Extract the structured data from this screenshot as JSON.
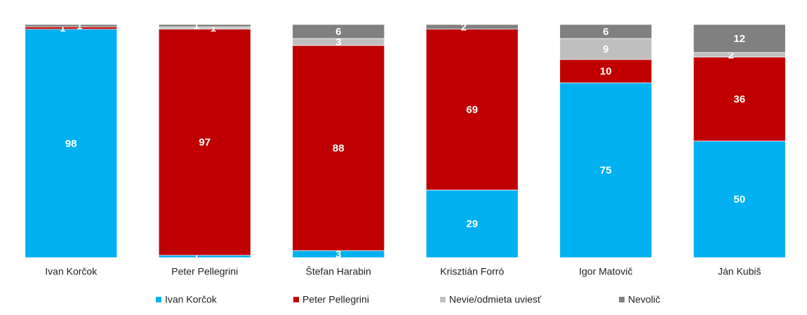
{
  "chart_data": {
    "type": "stacked-bar",
    "categories": [
      "Ivan Korčok",
      "Peter Pellegrini",
      "Štefan Harabin",
      "Krisztián Forró",
      "Igor Matovič",
      "Ján Kubiš"
    ],
    "series": [
      {
        "name": "Ivan Korčok",
        "color": "#00b0f0",
        "values": [
          98,
          1,
          3,
          29,
          75,
          50
        ]
      },
      {
        "name": "Peter Pellegrini",
        "color": "#c00000",
        "values": [
          1,
          97,
          88,
          69,
          10,
          36
        ]
      },
      {
        "name": "Nevie/odmieta uviesť",
        "color": "#bfbfbf",
        "values": [
          null,
          1,
          3,
          null,
          9,
          2
        ]
      },
      {
        "name": "Nevolič",
        "color": "#808080",
        "values": [
          1,
          1,
          6,
          2,
          6,
          12
        ]
      }
    ],
    "ylim": [
      0,
      100
    ],
    "legend": "bottom"
  }
}
